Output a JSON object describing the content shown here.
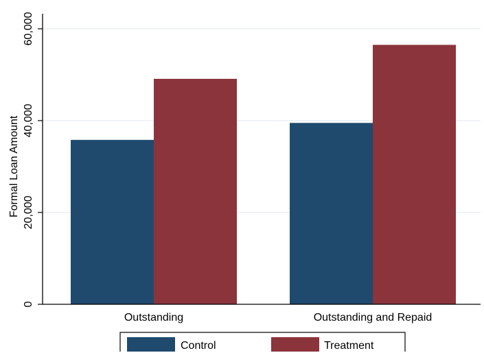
{
  "chart_data": {
    "type": "bar",
    "title": "",
    "xlabel": "",
    "ylabel": "Formal Loan Amount",
    "categories": [
      "Outstanding",
      "Outstanding and Repaid"
    ],
    "series": [
      {
        "name": "Control",
        "values": [
          35800,
          39500
        ],
        "color": "#1f4a6e"
      },
      {
        "name": "Treatment",
        "values": [
          49100,
          56500
        ],
        "color": "#8b343b"
      }
    ],
    "ylim": [
      0,
      60000
    ],
    "yticks": [
      0,
      20000,
      40000,
      60000
    ],
    "ytick_labels": [
      "0",
      "20,000",
      "40,000",
      "60,000"
    ],
    "grid": true,
    "legend_position": "bottom"
  }
}
